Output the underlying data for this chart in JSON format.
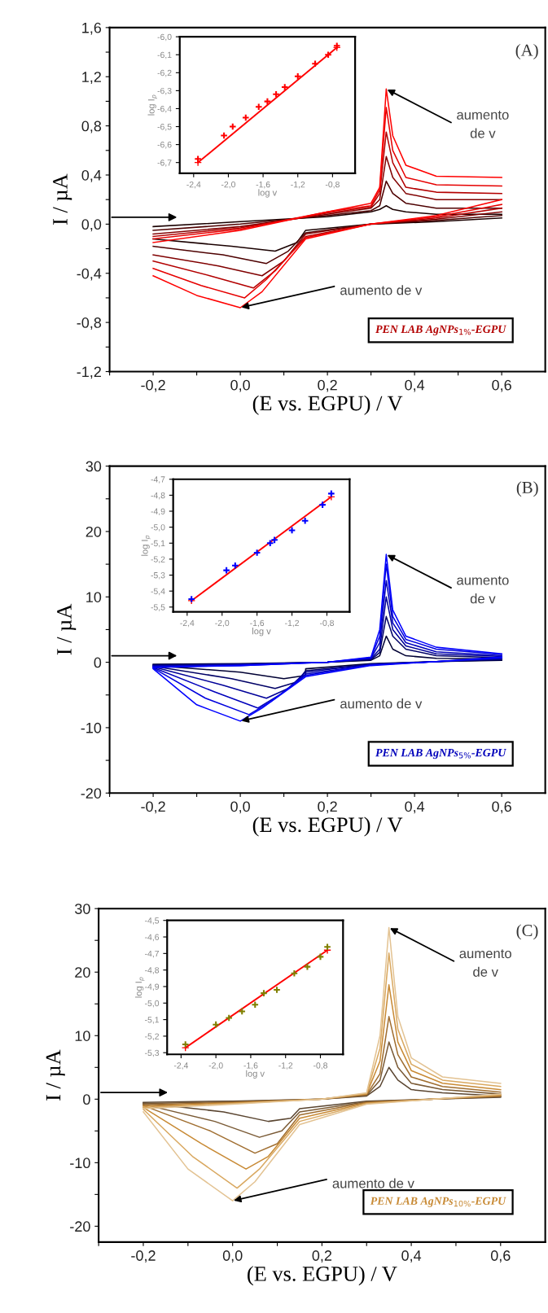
{
  "chart_data": [
    {
      "type": "line",
      "xlabel": "(E vs. EGPU) / V",
      "ylabel": "I / µA",
      "grid": false,
      "marker": "none",
      "line_style": "solid",
      "xlim": [
        -0.3,
        0.7
      ],
      "xticks": [
        {
          "value": -0.3,
          "label": null
        },
        {
          "value": -0.2,
          "label": "-0,2"
        },
        {
          "value": -0.1,
          "label": null
        },
        {
          "value": 0.0,
          "label": "0,0"
        },
        {
          "value": 0.1,
          "label": null
        },
        {
          "value": 0.2,
          "label": "0,2"
        },
        {
          "value": 0.3,
          "label": null
        },
        {
          "value": 0.4,
          "label": "0,4"
        },
        {
          "value": 0.5,
          "label": null
        },
        {
          "value": 0.6,
          "label": "0,6"
        }
      ],
      "ylim": [
        -1.2,
        1.6
      ],
      "yticks": [
        {
          "value": -1.2,
          "label": "-1,2"
        },
        {
          "value": -1.0,
          "label": null
        },
        {
          "value": -0.8,
          "label": "-0,8"
        },
        {
          "value": -0.6,
          "label": null
        },
        {
          "value": -0.4,
          "label": "-0,4"
        },
        {
          "value": -0.2,
          "label": null
        },
        {
          "value": 0.0,
          "label": "0,0"
        },
        {
          "value": 0.2,
          "label": null
        },
        {
          "value": 0.4,
          "label": "0,4"
        },
        {
          "value": 0.6,
          "label": null
        },
        {
          "value": 0.8,
          "label": "0,8"
        },
        {
          "value": 1.0,
          "label": null
        },
        {
          "value": 1.2,
          "label": "1,2"
        },
        {
          "value": 1.4,
          "label": null
        },
        {
          "value": 1.6,
          "label": "1,6"
        }
      ],
      "annotations": [
        "(A)",
        {
          "text": "aumento\nde v",
          "x": 0.335,
          "y": 1.1
        },
        {
          "text": "aumento de v",
          "x": 0.0,
          "y": -0.68
        },
        "PEN LAB AgNPs$_{1%}$-EGPU"
      ],
      "series": [
        {
          "color": "#1a0000",
          "x": [
            -0.2,
            0.0,
            0.2,
            0.3,
            0.32,
            0.335,
            0.35,
            0.38,
            0.45,
            0.6
          ],
          "values": [
            -0.02,
            0.02,
            0.06,
            0.1,
            0.12,
            0.15,
            0.12,
            0.1,
            0.08,
            0.08
          ]
        },
        {
          "color": "#1a0000",
          "x": [
            0.6,
            0.45,
            0.3,
            0.15,
            0.13,
            0.08,
            -0.02,
            -0.2
          ],
          "values": [
            0.05,
            0.02,
            0.0,
            -0.05,
            -0.15,
            -0.22,
            -0.18,
            -0.12
          ]
        },
        {
          "color": "#4d0000",
          "x": [
            -0.2,
            0.0,
            0.2,
            0.3,
            0.32,
            0.335,
            0.35,
            0.38,
            0.45,
            0.6
          ],
          "values": [
            -0.05,
            0.0,
            0.07,
            0.11,
            0.15,
            0.35,
            0.25,
            0.17,
            0.13,
            0.13
          ]
        },
        {
          "color": "#4d0000",
          "x": [
            0.6,
            0.45,
            0.3,
            0.15,
            0.11,
            0.06,
            -0.04,
            -0.2
          ],
          "values": [
            0.07,
            0.03,
            0.0,
            -0.07,
            -0.22,
            -0.32,
            -0.25,
            -0.18
          ]
        },
        {
          "color": "#800000",
          "x": [
            -0.2,
            0.0,
            0.2,
            0.3,
            0.32,
            0.335,
            0.35,
            0.38,
            0.45,
            0.6
          ],
          "values": [
            -0.08,
            -0.02,
            0.08,
            0.13,
            0.2,
            0.55,
            0.38,
            0.25,
            0.2,
            0.2
          ]
        },
        {
          "color": "#800000",
          "x": [
            0.6,
            0.45,
            0.3,
            0.15,
            0.1,
            0.05,
            -0.05,
            -0.2
          ],
          "values": [
            0.1,
            0.04,
            0.0,
            -0.08,
            -0.3,
            -0.42,
            -0.34,
            -0.25
          ]
        },
        {
          "color": "#b30000",
          "x": [
            -0.2,
            0.0,
            0.2,
            0.3,
            0.32,
            0.335,
            0.35,
            0.38,
            0.45,
            0.6
          ],
          "values": [
            -0.1,
            -0.03,
            0.09,
            0.14,
            0.25,
            0.75,
            0.5,
            0.3,
            0.26,
            0.25
          ]
        },
        {
          "color": "#b30000",
          "x": [
            0.6,
            0.45,
            0.3,
            0.15,
            0.08,
            0.03,
            -0.07,
            -0.2
          ],
          "values": [
            0.13,
            0.05,
            0.0,
            -0.1,
            -0.38,
            -0.52,
            -0.42,
            -0.3
          ]
        },
        {
          "color": "#e60000",
          "x": [
            -0.2,
            0.0,
            0.2,
            0.3,
            0.32,
            0.335,
            0.35,
            0.38,
            0.45,
            0.6
          ],
          "values": [
            -0.12,
            -0.04,
            0.1,
            0.15,
            0.28,
            0.95,
            0.6,
            0.38,
            0.32,
            0.31
          ]
        },
        {
          "color": "#e60000",
          "x": [
            0.6,
            0.45,
            0.3,
            0.15,
            0.06,
            0.01,
            -0.09,
            -0.2
          ],
          "values": [
            0.16,
            0.06,
            0.0,
            -0.11,
            -0.45,
            -0.6,
            -0.5,
            -0.36
          ]
        },
        {
          "color": "#ff0000",
          "x": [
            -0.2,
            0.0,
            0.2,
            0.3,
            0.32,
            0.335,
            0.35,
            0.38,
            0.45,
            0.6
          ],
          "values": [
            -0.15,
            -0.05,
            0.1,
            0.17,
            0.3,
            1.1,
            0.72,
            0.48,
            0.39,
            0.38
          ]
        },
        {
          "color": "#ff0000",
          "x": [
            0.6,
            0.45,
            0.3,
            0.15,
            0.05,
            0.0,
            -0.1,
            -0.2
          ],
          "values": [
            0.2,
            0.07,
            0.0,
            -0.12,
            -0.55,
            -0.68,
            -0.58,
            -0.42
          ]
        }
      ]
    },
    {
      "type": "scatter",
      "xlabel": "log v",
      "ylabel": "log I$_{p}$",
      "grid": false,
      "marker": "cross",
      "xlim": [
        -2.56,
        -0.54
      ],
      "xticks": [
        {
          "value": -2.4,
          "label": "-2,4"
        },
        {
          "value": -2.0,
          "label": "-2,0"
        },
        {
          "value": -1.6,
          "label": "-1,6"
        },
        {
          "value": -1.2,
          "label": "-1,2"
        },
        {
          "value": -0.8,
          "label": "-0,8"
        }
      ],
      "ylim": [
        -6.76,
        -6.0
      ],
      "yticks": [
        {
          "value": -6.7,
          "label": "-6,7"
        },
        {
          "value": -6.6,
          "label": "-6,6"
        },
        {
          "value": -6.5,
          "label": "-6,5"
        },
        {
          "value": -6.4,
          "label": "-6,4"
        },
        {
          "value": -6.3,
          "label": "-6,3"
        },
        {
          "value": -6.2,
          "label": "-6,2"
        },
        {
          "value": -6.1,
          "label": "-6,1"
        },
        {
          "value": -6.0,
          "label": "-6,0"
        }
      ],
      "series": [
        {
          "color": "#ff0000",
          "x": [
            -2.35,
            -2.05,
            -1.95,
            -1.8,
            -1.65,
            -1.55,
            -1.45,
            -1.35,
            -1.2,
            -1.0,
            -0.85,
            -0.75
          ],
          "values": [
            -6.68,
            -6.55,
            -6.5,
            -6.45,
            -6.39,
            -6.36,
            -6.32,
            -6.28,
            -6.22,
            -6.15,
            -6.1,
            -6.05
          ]
        },
        {
          "type": "line",
          "color": "#ff0000",
          "x": [
            -2.35,
            -0.75
          ],
          "values": [
            -6.7,
            -6.06
          ]
        }
      ]
    },
    {
      "type": "line",
      "xlabel": "(E vs. EGPU) / V",
      "ylabel": "I / µA",
      "grid": false,
      "marker": "none",
      "line_style": "solid",
      "xlim": [
        -0.3,
        0.7
      ],
      "xticks": [
        {
          "value": -0.3,
          "label": null
        },
        {
          "value": -0.2,
          "label": "-0,2"
        },
        {
          "value": -0.1,
          "label": null
        },
        {
          "value": 0.0,
          "label": "0,0"
        },
        {
          "value": 0.1,
          "label": null
        },
        {
          "value": 0.2,
          "label": "0,2"
        },
        {
          "value": 0.3,
          "label": null
        },
        {
          "value": 0.4,
          "label": "0,4"
        },
        {
          "value": 0.5,
          "label": null
        },
        {
          "value": 0.6,
          "label": "0,6"
        }
      ],
      "ylim": [
        -20,
        30
      ],
      "yticks": [
        -20,
        {
          "value": -15,
          "label": null
        },
        -10,
        {
          "value": -5,
          "label": null
        },
        0,
        {
          "value": 5,
          "label": null
        },
        10,
        {
          "value": 15,
          "label": null
        },
        20,
        {
          "value": 25,
          "label": null
        },
        30
      ],
      "annotations": [
        "(B)",
        {
          "text": "aumento\nde v",
          "x": 0.335,
          "y": 16.5
        },
        {
          "text": "aumento de v",
          "x": 0.0,
          "y": -9
        },
        "PEN LAB AgNPs$_{5%}$-EGPU"
      ],
      "series": [
        {
          "color": "#000033",
          "x": [
            -0.2,
            0.0,
            0.2,
            0.3,
            0.32,
            0.335,
            0.35,
            0.38,
            0.45,
            0.6
          ],
          "values": [
            -0.3,
            -0.2,
            0,
            0.3,
            1,
            4,
            2,
            1,
            0.6,
            0.5
          ]
        },
        {
          "color": "#000033",
          "x": [
            0.6,
            0.45,
            0.3,
            0.15,
            0.15,
            0.1,
            0.0,
            -0.2
          ],
          "values": [
            0.3,
            0.1,
            -0.2,
            -1,
            -2,
            -2.5,
            -1.5,
            -0.5
          ]
        },
        {
          "color": "#000066",
          "x": [
            -0.2,
            0.0,
            0.2,
            0.3,
            0.32,
            0.335,
            0.35,
            0.38,
            0.45,
            0.6
          ],
          "values": [
            -0.4,
            -0.3,
            0,
            0.4,
            1.5,
            7,
            4,
            2,
            1,
            0.7
          ]
        },
        {
          "color": "#000066",
          "x": [
            0.6,
            0.45,
            0.3,
            0.15,
            0.13,
            0.08,
            -0.02,
            -0.2
          ],
          "values": [
            0.4,
            0.1,
            -0.3,
            -1.3,
            -3,
            -4,
            -2.5,
            -0.6
          ]
        },
        {
          "color": "#000099",
          "x": [
            -0.2,
            0.0,
            0.2,
            0.3,
            0.32,
            0.335,
            0.35,
            0.38,
            0.45,
            0.6
          ],
          "values": [
            -0.5,
            -0.3,
            0,
            0.5,
            2,
            10,
            5,
            2.5,
            1.3,
            0.9
          ]
        },
        {
          "color": "#000099",
          "x": [
            0.6,
            0.45,
            0.3,
            0.15,
            0.11,
            0.06,
            -0.04,
            -0.2
          ],
          "values": [
            0.5,
            0.1,
            -0.3,
            -1.5,
            -4,
            -5.5,
            -3.5,
            -0.7
          ]
        },
        {
          "color": "#0000bb",
          "x": [
            -0.2,
            0.0,
            0.2,
            0.3,
            0.32,
            0.335,
            0.35,
            0.38,
            0.45,
            0.6
          ],
          "values": [
            -0.6,
            -0.4,
            0,
            0.6,
            3,
            12.5,
            6,
            3,
            1.6,
            1.0
          ]
        },
        {
          "color": "#0000bb",
          "x": [
            0.6,
            0.45,
            0.3,
            0.15,
            0.09,
            0.04,
            -0.06,
            -0.2
          ],
          "values": [
            0.6,
            0.1,
            -0.4,
            -1.8,
            -5,
            -7,
            -4.5,
            -0.8
          ]
        },
        {
          "color": "#0000dd",
          "x": [
            -0.2,
            0.0,
            0.2,
            0.3,
            0.32,
            0.335,
            0.35,
            0.38,
            0.45,
            0.6
          ],
          "values": [
            -0.7,
            -0.5,
            0,
            0.7,
            4,
            15,
            7,
            3.5,
            2,
            1.2
          ]
        },
        {
          "color": "#0000dd",
          "x": [
            0.6,
            0.45,
            0.3,
            0.15,
            0.07,
            0.02,
            -0.08,
            -0.2
          ],
          "values": [
            0.7,
            0.1,
            -0.4,
            -2,
            -6,
            -8,
            -5.5,
            -0.9
          ]
        },
        {
          "color": "#0000ff",
          "x": [
            -0.2,
            0.0,
            0.2,
            0.3,
            0.32,
            0.335,
            0.35,
            0.38,
            0.45,
            0.6
          ],
          "values": [
            -0.8,
            -0.5,
            0,
            0.8,
            5,
            16.5,
            8,
            4,
            2.3,
            1.3
          ]
        },
        {
          "color": "#0000ff",
          "x": [
            0.6,
            0.45,
            0.3,
            0.15,
            0.05,
            0.0,
            -0.1,
            -0.2
          ],
          "values": [
            0.8,
            0.1,
            -0.5,
            -2.2,
            -7,
            -9,
            -6.5,
            -1
          ]
        }
      ]
    },
    {
      "type": "scatter",
      "xlabel": "log v",
      "ylabel": "log I$_{p}$",
      "grid": false,
      "marker": "cross",
      "xlim": [
        -2.56,
        -0.54
      ],
      "xticks": [
        {
          "value": -2.4,
          "label": "-2,4"
        },
        {
          "value": -2.0,
          "label": "-2,0"
        },
        {
          "value": -1.6,
          "label": "-1,6"
        },
        {
          "value": -1.2,
          "label": "-1,2"
        },
        {
          "value": -0.8,
          "label": "-0,8"
        }
      ],
      "ylim": [
        -5.53,
        -4.7
      ],
      "yticks": [
        {
          "value": -5.5,
          "label": "-5,5"
        },
        {
          "value": -5.4,
          "label": "-5,4"
        },
        {
          "value": -5.3,
          "label": "-5,3"
        },
        {
          "value": -5.2,
          "label": "-5,2"
        },
        {
          "value": -5.1,
          "label": "-5,1"
        },
        {
          "value": -5.0,
          "label": "-5,0"
        },
        {
          "value": -4.9,
          "label": "-4,9"
        },
        {
          "value": -4.8,
          "label": "-4,8"
        },
        {
          "value": -4.7,
          "label": "-4,7"
        }
      ],
      "series": [
        {
          "color": "#0000ff",
          "x": [
            -2.35,
            -1.95,
            -1.85,
            -1.6,
            -1.45,
            -1.4,
            -1.2,
            -1.05,
            -0.85,
            -0.75
          ],
          "values": [
            -5.45,
            -5.27,
            -5.24,
            -5.16,
            -5.1,
            -5.08,
            -5.02,
            -4.96,
            -4.86,
            -4.79
          ]
        },
        {
          "type": "line",
          "color": "#ff0000",
          "x": [
            -2.35,
            -0.75
          ],
          "values": [
            -5.46,
            -4.81
          ]
        }
      ]
    },
    {
      "type": "line",
      "xlabel": "(E vs. EGPU) / V",
      "ylabel": "I / µA",
      "grid": false,
      "marker": "none",
      "line_style": "solid",
      "xlim": [
        -0.3,
        0.7
      ],
      "xticks": [
        {
          "value": -0.3,
          "label": null
        },
        {
          "value": -0.2,
          "label": "-0,2"
        },
        {
          "value": -0.1,
          "label": null
        },
        {
          "value": 0.0,
          "label": "0,0"
        },
        {
          "value": 0.1,
          "label": null
        },
        {
          "value": 0.2,
          "label": "0,2"
        },
        {
          "value": 0.3,
          "label": null
        },
        {
          "value": 0.4,
          "label": "0,4"
        },
        {
          "value": 0.5,
          "label": null
        },
        {
          "value": 0.6,
          "label": "0,6"
        }
      ],
      "ylim": [
        -22.5,
        30
      ],
      "yticks": [
        -20,
        {
          "value": -15,
          "label": null
        },
        -10,
        {
          "value": -5,
          "label": null
        },
        0,
        {
          "value": 5,
          "label": null
        },
        10,
        {
          "value": 15,
          "label": null
        },
        20,
        {
          "value": 25,
          "label": null
        },
        30
      ],
      "annotations": [
        "(C)",
        {
          "text": "aumento\nde v",
          "x": 0.35,
          "y": 27
        },
        {
          "text": "aumento de v",
          "x": 0.0,
          "y": -16
        },
        "PEN LAB AgNPs$_{10%}$-EGPU"
      ],
      "series": [
        {
          "color": "#5a4530",
          "x": [
            -0.2,
            0.0,
            0.2,
            0.3,
            0.33,
            0.35,
            0.37,
            0.4,
            0.47,
            0.6
          ],
          "values": [
            -0.5,
            -0.3,
            0,
            0.5,
            2,
            5,
            3,
            1.5,
            1,
            0.5
          ]
        },
        {
          "color": "#5a4530",
          "x": [
            0.6,
            0.45,
            0.3,
            0.15,
            0.13,
            0.08,
            -0.02,
            -0.2
          ],
          "values": [
            0.3,
            0,
            -0.3,
            -1.5,
            -3,
            -3.5,
            -2,
            -0.6
          ]
        },
        {
          "color": "#7a5a35",
          "x": [
            -0.2,
            0.0,
            0.2,
            0.3,
            0.33,
            0.35,
            0.37,
            0.4,
            0.47,
            0.6
          ],
          "values": [
            -0.7,
            -0.4,
            0,
            0.6,
            3,
            9,
            5,
            2.5,
            1.5,
            0.8
          ]
        },
        {
          "color": "#7a5a35",
          "x": [
            0.6,
            0.45,
            0.3,
            0.15,
            0.11,
            0.06,
            -0.04,
            -0.2
          ],
          "values": [
            0.4,
            0,
            -0.4,
            -2,
            -5,
            -6,
            -3.5,
            -0.8
          ]
        },
        {
          "color": "#a06e30",
          "x": [
            -0.2,
            0.0,
            0.2,
            0.3,
            0.33,
            0.35,
            0.37,
            0.4,
            0.47,
            0.6
          ],
          "values": [
            -0.9,
            -0.5,
            0,
            0.7,
            4,
            13,
            7,
            3.5,
            2,
            1.1
          ]
        },
        {
          "color": "#a06e30",
          "x": [
            0.6,
            0.45,
            0.3,
            0.15,
            0.1,
            0.05,
            -0.05,
            -0.2
          ],
          "values": [
            0.5,
            0,
            -0.5,
            -2.5,
            -7,
            -8.5,
            -5,
            -1
          ]
        },
        {
          "color": "#c88a35",
          "x": [
            -0.2,
            0.0,
            0.2,
            0.3,
            0.33,
            0.35,
            0.37,
            0.4,
            0.47,
            0.6
          ],
          "values": [
            -1.1,
            -0.6,
            0,
            0.8,
            6,
            18,
            9,
            4.5,
            2.5,
            1.5
          ]
        },
        {
          "color": "#c88a35",
          "x": [
            0.6,
            0.45,
            0.3,
            0.15,
            0.08,
            0.03,
            -0.07,
            -0.2
          ],
          "values": [
            0.6,
            0,
            -0.6,
            -3,
            -9,
            -11,
            -7,
            -1.3
          ]
        },
        {
          "color": "#d9a860",
          "x": [
            -0.2,
            0.0,
            0.2,
            0.3,
            0.33,
            0.35,
            0.37,
            0.4,
            0.47,
            0.6
          ],
          "values": [
            -1.3,
            -0.7,
            0,
            0.9,
            8,
            23,
            11,
            5.5,
            3,
            2
          ]
        },
        {
          "color": "#d9a860",
          "x": [
            0.6,
            0.45,
            0.3,
            0.15,
            0.06,
            0.01,
            -0.09,
            -0.2
          ],
          "values": [
            0.7,
            0,
            -0.7,
            -3.5,
            -11,
            -14,
            -9,
            -1.6
          ]
        },
        {
          "color": "#e3c393",
          "x": [
            -0.2,
            0.0,
            0.2,
            0.3,
            0.33,
            0.35,
            0.37,
            0.4,
            0.47,
            0.6
          ],
          "values": [
            -1.5,
            -0.8,
            0,
            1,
            10,
            27,
            13,
            6.5,
            3.5,
            2.5
          ]
        },
        {
          "color": "#e3c393",
          "x": [
            0.6,
            0.45,
            0.3,
            0.15,
            0.05,
            0.0,
            -0.1,
            -0.2
          ],
          "values": [
            0.8,
            0,
            -0.8,
            -4,
            -13,
            -16,
            -11,
            -2
          ]
        }
      ]
    },
    {
      "type": "scatter",
      "xlabel": "log v",
      "ylabel": "log I$_{p}$",
      "grid": false,
      "marker": "cross",
      "xlim": [
        -2.56,
        -0.54
      ],
      "xticks": [
        {
          "value": -2.4,
          "label": "-2,4"
        },
        {
          "value": -2.0,
          "label": "-2,0"
        },
        {
          "value": -1.6,
          "label": "-1,6"
        },
        {
          "value": -1.2,
          "label": "-1,2"
        },
        {
          "value": -0.8,
          "label": "-0,8"
        }
      ],
      "ylim": [
        -5.31,
        -4.5
      ],
      "yticks": [
        {
          "value": -5.3,
          "label": "-5,3"
        },
        {
          "value": -5.2,
          "label": "-5,2"
        },
        {
          "value": -5.1,
          "label": "-5,1"
        },
        {
          "value": -5.0,
          "label": "-5,0"
        },
        {
          "value": -4.9,
          "label": "-4,9"
        },
        {
          "value": -4.8,
          "label": "-4,8"
        },
        {
          "value": -4.7,
          "label": "-4,7"
        },
        {
          "value": -4.6,
          "label": "-4,6"
        },
        {
          "value": -4.5,
          "label": "-4,5"
        }
      ],
      "series": [
        {
          "color": "#808000",
          "x": [
            -2.35,
            -2.0,
            -1.85,
            -1.7,
            -1.55,
            -1.45,
            -1.3,
            -1.1,
            -0.95,
            -0.8,
            -0.72
          ],
          "values": [
            -5.25,
            -5.13,
            -5.09,
            -5.05,
            -5.01,
            -4.94,
            -4.92,
            -4.82,
            -4.78,
            -4.72,
            -4.66
          ]
        },
        {
          "type": "line",
          "color": "#ff0000",
          "x": [
            -2.35,
            -0.72
          ],
          "values": [
            -5.27,
            -4.68
          ]
        }
      ]
    }
  ]
}
